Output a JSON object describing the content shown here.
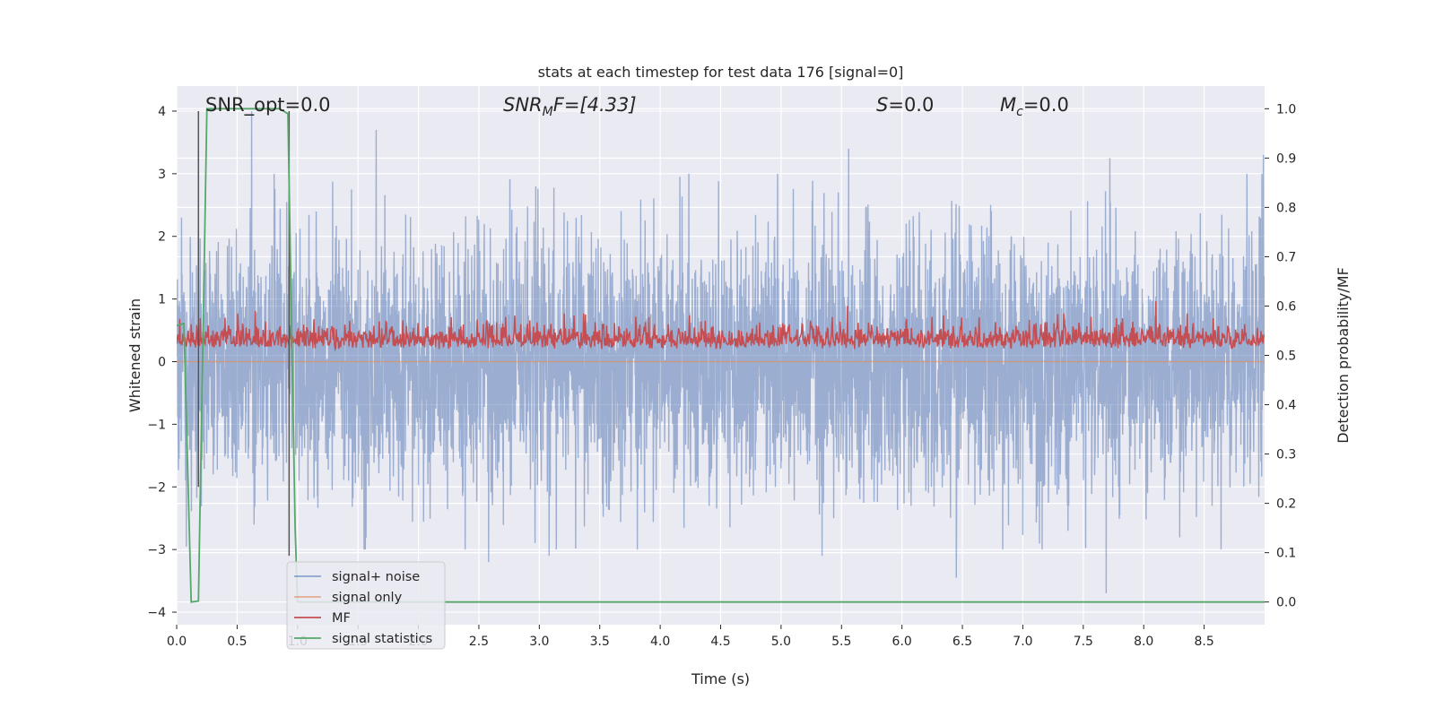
{
  "chart_data": {
    "type": "line",
    "title": "stats at each timestep for test data 176 [signal=0]",
    "xlabel": "Time (s)",
    "ylabel": "Whitened strain",
    "y2label": "Detection probability/MF",
    "xlim": [
      0,
      9
    ],
    "ylim": [
      -4.2,
      4.4
    ],
    "y2lim": [
      -0.046,
      1.046
    ],
    "xticks": [
      "0.0",
      "0.5",
      "1.0",
      "1.5",
      "2.0",
      "2.5",
      "3.0",
      "3.5",
      "4.0",
      "4.5",
      "5.0",
      "5.5",
      "6.0",
      "6.5",
      "7.0",
      "7.5",
      "8.0",
      "8.5"
    ],
    "xtick_values": [
      0,
      0.5,
      1,
      1.5,
      2,
      2.5,
      3,
      3.5,
      4,
      4.5,
      5,
      5.5,
      6,
      6.5,
      7,
      7.5,
      8,
      8.5
    ],
    "yticks": [
      "−4",
      "−3",
      "−2",
      "−1",
      "0",
      "1",
      "2",
      "3",
      "4"
    ],
    "ytick_values": [
      -4,
      -3,
      -2,
      -1,
      0,
      1,
      2,
      3,
      4
    ],
    "y2ticks": [
      "0.0",
      "0.1",
      "0.2",
      "0.3",
      "0.4",
      "0.5",
      "0.6",
      "0.7",
      "0.8",
      "0.9",
      "1.0"
    ],
    "y2tick_values": [
      0,
      0.1,
      0.2,
      0.3,
      0.4,
      0.5,
      0.6,
      0.7,
      0.8,
      0.9,
      1.0
    ],
    "grid": true,
    "legend_position": "bottom-left",
    "annotations": {
      "snr_opt": "SNR_opt=0.0",
      "snr_mf_main": "SNR",
      "snr_mf_sub": "M",
      "snr_mf_rest": "F=[4.33]",
      "s_main": "S",
      "s_rest": "=0.0",
      "mc_main": "M",
      "mc_sub": "c",
      "mc_rest": "=0.0"
    },
    "series": [
      {
        "name": "signal+ noise",
        "axis": "left",
        "color": "#4c72b0",
        "description": "whitened noise with no injected signal, approx ±3.5 amplitude",
        "noise_scale": 1.05,
        "peaks": [
          [
            0.04,
            2.3
          ],
          [
            0.62,
            4.0
          ],
          [
            0.64,
            -2.6
          ],
          [
            1.65,
            3.7
          ],
          [
            1.56,
            -3.0
          ],
          [
            2.58,
            -3.2
          ],
          [
            3.08,
            -3.1
          ],
          [
            5.34,
            -3.1
          ],
          [
            5.56,
            3.4
          ],
          [
            6.45,
            -3.45
          ],
          [
            7.69,
            -3.7
          ],
          [
            7.72,
            3.25
          ],
          [
            7.38,
            -2.3
          ],
          [
            8.99,
            3.3
          ]
        ]
      },
      {
        "name": "signal only",
        "axis": "left",
        "color": "#dd8452",
        "values_constant": 0
      },
      {
        "name": "MF",
        "axis": "right",
        "color": "#c44e52",
        "baseline": 0.5,
        "range": [
          0.5,
          0.6
        ],
        "peaks": [
          [
            8.1,
            0.61
          ],
          [
            5.55,
            0.6
          ],
          [
            0.65,
            0.59
          ]
        ]
      },
      {
        "name": "signal statistics",
        "axis": "right",
        "color": "#55a868",
        "x": [
          0,
          0.06,
          0.12,
          0.18,
          0.25,
          0.85,
          0.92,
          0.98,
          1.0,
          1.05,
          9.0
        ],
        "y": [
          0.56,
          0.565,
          0.0,
          0.002,
          1.0,
          1.0,
          0.99,
          0.15,
          0.0,
          0.0,
          0.0
        ]
      }
    ],
    "vlines": [
      {
        "x": 0.18,
        "y_range": [
          -2.0,
          4.0
        ],
        "color": "#555555"
      },
      {
        "x": 0.93,
        "y_range": [
          -3.1,
          4.0
        ],
        "color": "#555555"
      }
    ]
  }
}
